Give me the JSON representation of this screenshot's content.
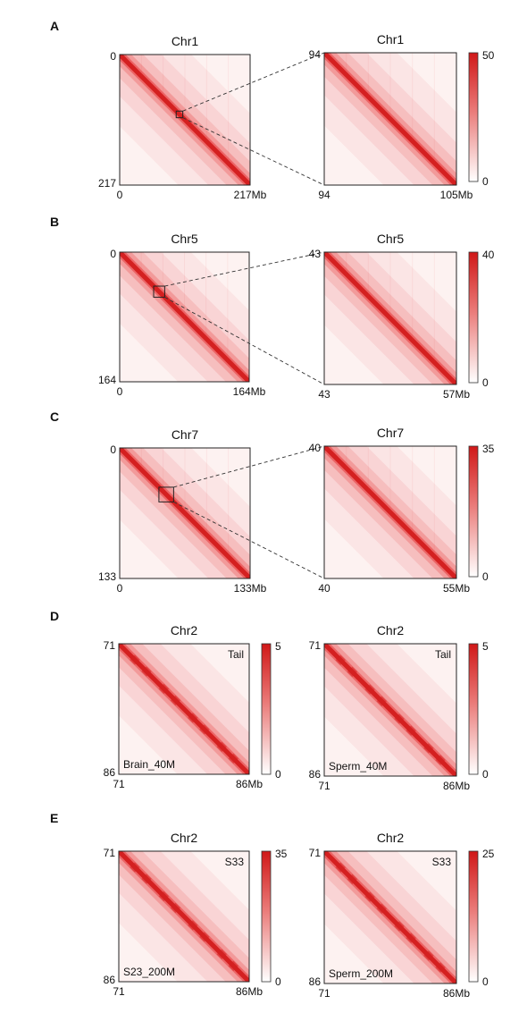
{
  "chart_data": [
    {
      "type": "heatmap",
      "panel": "A",
      "title": "Chr1",
      "tick_start": "0",
      "tick_end": "217",
      "tick_end_unit": "217Mb",
      "range_mb": [
        0,
        217
      ],
      "zoom_box_mb": [
        94,
        105
      ]
    },
    {
      "type": "heatmap",
      "title": "Chr1",
      "tick_start": "94",
      "tick_end_unit": "105Mb",
      "range_mb": [
        94,
        105
      ],
      "colorbar": {
        "max": "50",
        "min": "0"
      }
    },
    {
      "type": "heatmap",
      "panel": "B",
      "title": "Chr5",
      "tick_start": "0",
      "tick_end": "164",
      "tick_end_unit": "164Mb",
      "range_mb": [
        0,
        164
      ],
      "zoom_box_mb": [
        43,
        57
      ]
    },
    {
      "type": "heatmap",
      "title": "Chr5",
      "tick_start": "43",
      "tick_end_unit": "57Mb",
      "range_mb": [
        43,
        57
      ],
      "colorbar": {
        "max": "40",
        "min": "0"
      }
    },
    {
      "type": "heatmap",
      "panel": "C",
      "title": "Chr7",
      "tick_start": "0",
      "tick_end": "133",
      "tick_end_unit": "133Mb",
      "range_mb": [
        0,
        133
      ],
      "zoom_box_mb": [
        40,
        55
      ]
    },
    {
      "type": "heatmap",
      "title": "Chr7",
      "tick_start": "40",
      "tick_end_unit": "55Mb",
      "range_mb": [
        40,
        55
      ],
      "colorbar": {
        "max": "35",
        "min": "0"
      }
    },
    {
      "type": "heatmap",
      "panel": "D",
      "title": "Chr2",
      "tick_start": "71",
      "tick_end": "86",
      "tick_end_unit": "86Mb",
      "range_mb": [
        71,
        86
      ],
      "label_top_right": "Tail",
      "label_bottom_left": "Brain_40M",
      "colorbar": {
        "max": "5",
        "min": "0"
      }
    },
    {
      "type": "heatmap",
      "title": "Chr2",
      "tick_start": "71",
      "tick_end": "86",
      "tick_end_unit": "86Mb",
      "range_mb": [
        71,
        86
      ],
      "label_top_right": "Tail",
      "label_bottom_left": "Sperm_40M",
      "colorbar": {
        "max": "5",
        "min": "0"
      }
    },
    {
      "type": "heatmap",
      "panel": "E",
      "title": "Chr2",
      "tick_start": "71",
      "tick_end": "86",
      "tick_end_unit": "86Mb",
      "range_mb": [
        71,
        86
      ],
      "label_top_right": "S33",
      "label_bottom_left": "S23_200M",
      "colorbar": {
        "max": "35",
        "min": "0"
      }
    },
    {
      "type": "heatmap",
      "title": "Chr2",
      "tick_start": "71",
      "tick_end": "86",
      "tick_end_unit": "86Mb",
      "range_mb": [
        71,
        86
      ],
      "label_top_right": "S33",
      "label_bottom_left": "Sperm_200M",
      "colorbar": {
        "max": "25",
        "min": "0"
      }
    }
  ],
  "colors": {
    "diagonal": "#d42020",
    "near_diagonal": "#e8484a",
    "background": "#fdf2f1",
    "colorbar_top": "#d01818",
    "colorbar_bottom": "#ffffff"
  }
}
